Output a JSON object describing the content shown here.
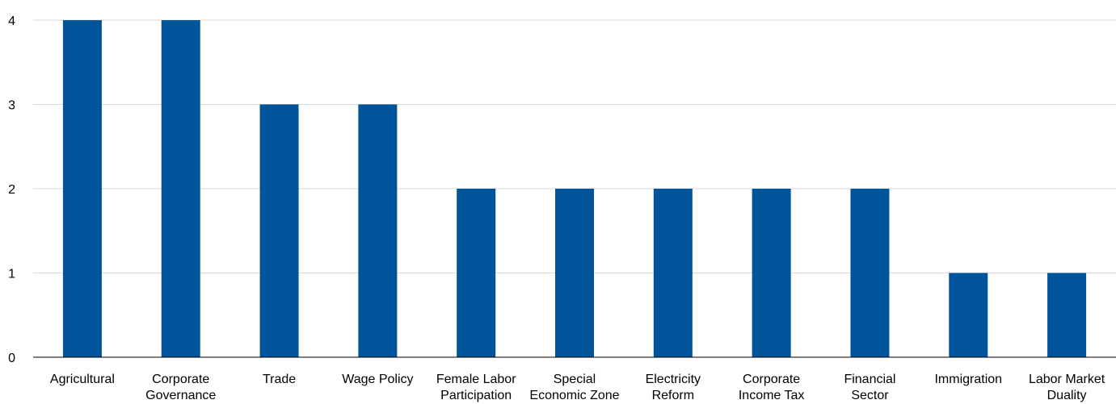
{
  "chart_data": {
    "type": "bar",
    "categories": [
      "Agricultural",
      "Corporate Governance",
      "Trade",
      "Wage Policy",
      "Female Labor Participation",
      "Special Economic Zone",
      "Electricity Reform",
      "Corporate Income Tax",
      "Financial Sector",
      "Immigration",
      "Labor Market Duality"
    ],
    "category_lines": [
      [
        "Agricultural"
      ],
      [
        "Corporate",
        "Governance"
      ],
      [
        "Trade"
      ],
      [
        "Wage Policy"
      ],
      [
        "Female Labor",
        "Participation"
      ],
      [
        "Special",
        "Economic Zone"
      ],
      [
        "Electricity",
        "Reform"
      ],
      [
        "Corporate",
        "Income Tax"
      ],
      [
        "Financial",
        "Sector"
      ],
      [
        "Immigration"
      ],
      [
        "Labor Market",
        "Duality"
      ]
    ],
    "values": [
      4,
      4,
      3,
      3,
      2,
      2,
      2,
      2,
      2,
      1,
      1
    ],
    "yticks": [
      "0",
      "1",
      "2",
      "3",
      "4"
    ],
    "ylim": [
      0,
      4
    ],
    "grid": true,
    "legend": "none",
    "bar_color": "#00549a",
    "title": "",
    "xlabel": "",
    "ylabel": ""
  }
}
